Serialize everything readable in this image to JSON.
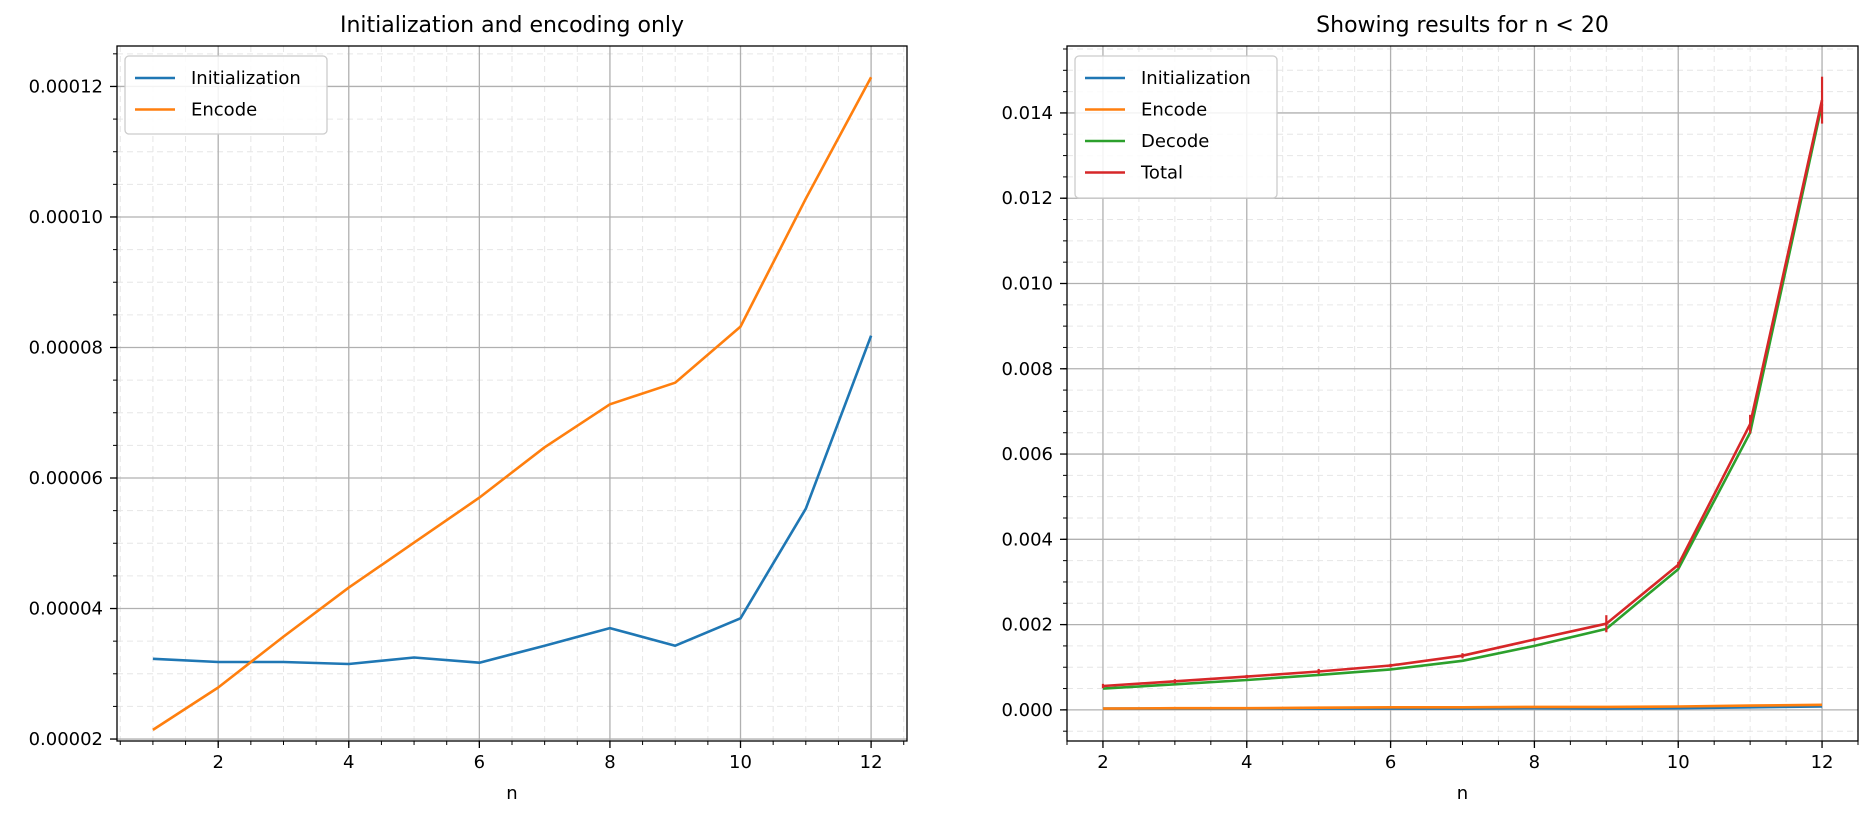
{
  "chart_data": [
    {
      "type": "line",
      "title": "Initialization and encoding only",
      "xlabel": "n",
      "ylabel": "",
      "xlim": [
        0.45,
        12.55
      ],
      "ylim": [
        1.97e-05,
        0.0001262
      ],
      "xticks": [
        2,
        4,
        6,
        8,
        10,
        12
      ],
      "xtick_labels": [
        "2",
        "4",
        "6",
        "8",
        "10",
        "12"
      ],
      "yticks": [
        2e-05,
        4e-05,
        6e-05,
        8e-05,
        0.0001,
        0.00012
      ],
      "ytick_labels": [
        "0.00002",
        "0.00004",
        "0.00006",
        "0.00008",
        "0.00010",
        "0.00012"
      ],
      "grid": true,
      "legend_position": "upper-left",
      "x": [
        1,
        2,
        3,
        4,
        5,
        6,
        7,
        8,
        9,
        10,
        11,
        12
      ],
      "series": [
        {
          "name": "Initialization",
          "color": "#1f77b4",
          "values": [
            3.23e-05,
            3.18e-05,
            3.18e-05,
            3.15e-05,
            3.25e-05,
            3.17e-05,
            3.43e-05,
            3.7e-05,
            3.43e-05,
            3.85e-05,
            5.53e-05,
            8.18e-05
          ]
        },
        {
          "name": "Encode",
          "color": "#ff7f0e",
          "values": [
            2.14e-05,
            2.79e-05,
            3.57e-05,
            4.32e-05,
            5.01e-05,
            5.7e-05,
            6.47e-05,
            7.13e-05,
            7.46e-05,
            8.32e-05,
            0.0001028,
            0.0001214
          ]
        }
      ]
    },
    {
      "type": "line",
      "title": "Showing results for n < 20",
      "xlabel": "n",
      "ylabel": "",
      "xlim": [
        1.5,
        12.5
      ],
      "ylim": [
        -0.00073,
        0.01557
      ],
      "xticks": [
        2,
        4,
        6,
        8,
        10,
        12
      ],
      "xtick_labels": [
        "2",
        "4",
        "6",
        "8",
        "10",
        "12"
      ],
      "yticks": [
        0,
        0.002,
        0.004,
        0.006,
        0.008,
        0.01,
        0.012,
        0.014
      ],
      "ytick_labels": [
        "0.000",
        "0.002",
        "0.004",
        "0.006",
        "0.008",
        "0.010",
        "0.012",
        "0.014"
      ],
      "grid": true,
      "legend_position": "upper-left",
      "x": [
        2,
        3,
        4,
        5,
        6,
        7,
        8,
        9,
        10,
        11,
        12
      ],
      "series": [
        {
          "name": "Initialization",
          "color": "#1f77b4",
          "values": [
            3e-05,
            3e-05,
            3e-05,
            3e-05,
            3e-05,
            3e-05,
            4e-05,
            3e-05,
            4e-05,
            6e-05,
            8e-05
          ]
        },
        {
          "name": "Encode",
          "color": "#ff7f0e",
          "values": [
            3e-05,
            4e-05,
            4e-05,
            5e-05,
            6e-05,
            6e-05,
            7e-05,
            7e-05,
            8e-05,
            0.0001,
            0.00012
          ]
        },
        {
          "name": "Decode",
          "color": "#2ca02c",
          "values": [
            0.0005,
            0.0006,
            0.0007,
            0.00082,
            0.00095,
            0.00115,
            0.0015,
            0.0019,
            0.0033,
            0.0065,
            0.0142
          ]
        },
        {
          "name": "Total",
          "color": "#d62728",
          "values": [
            0.00056,
            0.00067,
            0.00078,
            0.0009,
            0.00104,
            0.00127,
            0.00165,
            0.00202,
            0.0034,
            0.0067,
            0.0143
          ],
          "error": [
            5e-05,
            5e-05,
            4e-05,
            6e-05,
            4e-05,
            6e-05,
            4e-05,
            0.0002,
            7e-05,
            0.00022,
            0.00055
          ]
        }
      ]
    }
  ]
}
